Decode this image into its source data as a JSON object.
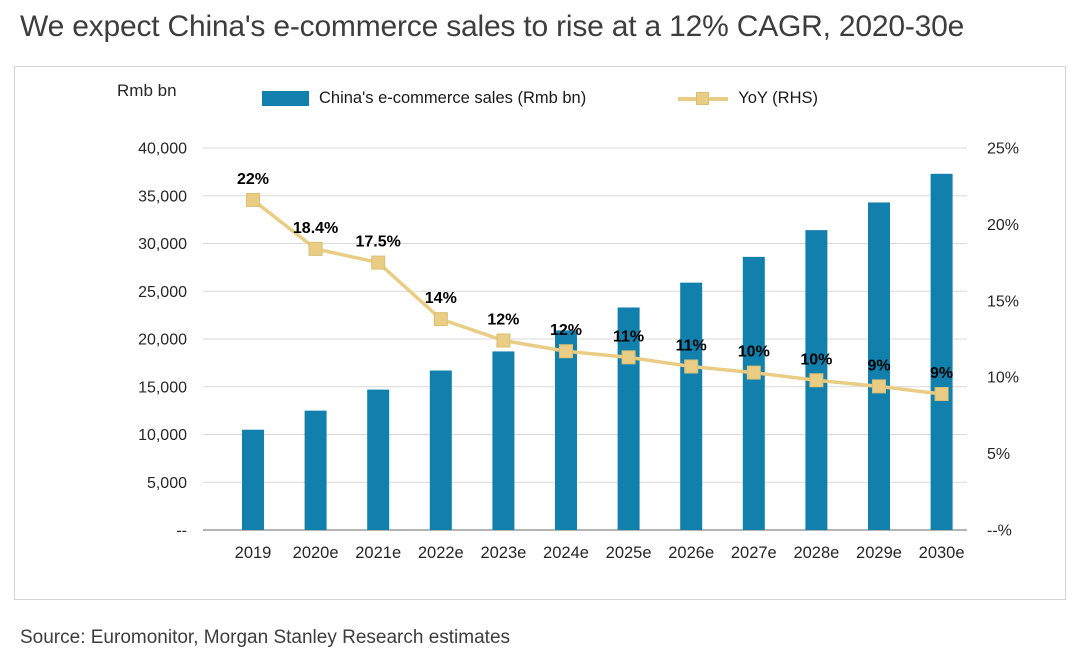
{
  "source": "Source: Euromonitor, Morgan Stanley Research estimates",
  "chart_data": {
    "type": "bar+line",
    "title": "We expect China's e-commerce sales to rise at a 12% CAGR, 2020-30e",
    "categories": [
      "2019",
      "2020e",
      "2021e",
      "2022e",
      "2023e",
      "2024e",
      "2025e",
      "2026e",
      "2027e",
      "2028e",
      "2029e",
      "2030e"
    ],
    "series": [
      {
        "name": "China's e-commerce sales (Rmb bn)",
        "type": "bar",
        "axis": "left",
        "values": [
          10500,
          12500,
          14700,
          16700,
          18700,
          20900,
          23300,
          25900,
          28600,
          31400,
          34300,
          37300
        ]
      },
      {
        "name": "YoY (RHS)",
        "type": "line",
        "axis": "right",
        "values": [
          21.6,
          18.4,
          17.5,
          13.8,
          12.4,
          11.7,
          11.3,
          10.7,
          10.3,
          9.8,
          9.4,
          8.9
        ],
        "labels": [
          "22%",
          "18.4%",
          "17.5%",
          "14%",
          "12%",
          "12%",
          "11%",
          "11%",
          "10%",
          "10%",
          "9%",
          "9%"
        ]
      }
    ],
    "left_axis": {
      "unit": "Rmb bn",
      "min": 0,
      "max": 40000,
      "step": 5000,
      "tick_labels": [
        "--",
        "5,000",
        "10,000",
        "15,000",
        "20,000",
        "25,000",
        "30,000",
        "35,000",
        "40,000"
      ]
    },
    "right_axis": {
      "min": 0,
      "max": 25,
      "step": 5,
      "tick_labels": [
        "--%",
        "5%",
        "10%",
        "15%",
        "20%",
        "25%"
      ]
    },
    "colors": {
      "bar": "#1280ac",
      "line": "#e9cd84",
      "line_marker_border": "#dcbd72",
      "grid": "#d9d9d9",
      "baseline": "#9b9b9b"
    },
    "grid": true,
    "legend_position": "top"
  }
}
